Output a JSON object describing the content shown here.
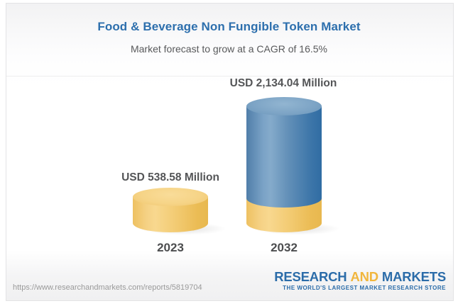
{
  "header": {
    "title": "Food & Beverage Non Fungible Token Market",
    "subtitle": "Market forecast to grow at a CAGR of 16.5%"
  },
  "chart_data": {
    "type": "bar",
    "bar_style": "3d-cylinder",
    "categories": [
      "2023",
      "2032"
    ],
    "values": [
      538.58,
      2134.04
    ],
    "value_labels": [
      "USD 538.58 Million",
      "USD 2,134.04 Million"
    ],
    "unit": "USD Million",
    "cagr_percent": 16.5,
    "title": "Food & Beverage Non Fungible Token Market",
    "subtitle": "Market forecast to grow at a CAGR of 16.5%",
    "legend": false,
    "grid": false,
    "colors": {
      "bar_2023": "#f2cb72",
      "bar_2032": "#4f81ad",
      "bar_2032_base": "#f2cb72",
      "title_text": "#2d6fad",
      "label_text": "#545557"
    }
  },
  "footer": {
    "url": "https://www.researchandmarkets.com/reports/5819704",
    "logo": {
      "research": "RESEARCH",
      "and": "AND",
      "markets": "MARKETS",
      "tagline": "THE WORLD'S LARGEST MARKET RESEARCH STORE",
      "blue": "#2b6ca9",
      "gold": "#f1b63d"
    }
  }
}
